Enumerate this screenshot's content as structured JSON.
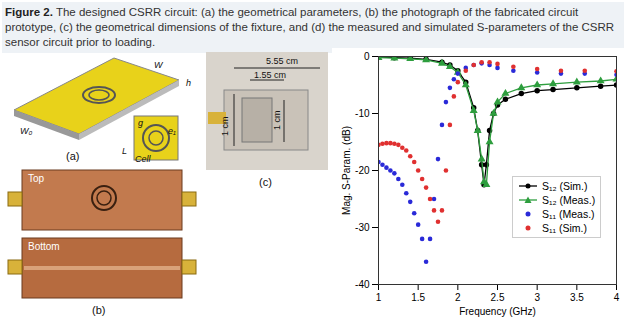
{
  "caption": {
    "label": "Figure 2.",
    "text": "The designed CSRR circuit: (a) the geometrical parameters, (b) the photograph of the fabricated circuit prototype, (c) the geometrical dimensions of the fixture, and (d) the measured and simulated S-parameters of the CSRR sensor circuit prior to loading."
  },
  "panels": {
    "a": {
      "label": "(a)",
      "texts": [
        "W",
        "h",
        "W₀",
        "L",
        "g",
        "e₁",
        "Cell"
      ]
    },
    "b": {
      "label": "(b)",
      "texts": [
        "Top",
        "Bottom"
      ]
    },
    "c": {
      "label": "(c)",
      "texts": [
        "5.55 cm",
        "1.55 cm",
        "1 cm",
        "1 cm"
      ]
    }
  },
  "chart_data": {
    "type": "line",
    "xlabel": "Frequency (GHz)",
    "ylabel": "Mag. S-Param. (dB)",
    "xlim": [
      1,
      4
    ],
    "xticks": [
      1,
      1.5,
      2,
      2.5,
      3,
      3.5,
      4
    ],
    "ylim": [
      -40,
      0
    ],
    "yticks": [
      -40,
      -30,
      -20,
      -10,
      0
    ],
    "grid": false,
    "legend": "right",
    "series": [
      {
        "name": "S₁₂ (Sim.)",
        "color": "#000000",
        "type": "line",
        "marker": "circle",
        "x": [
          1,
          1.2,
          1.4,
          1.6,
          1.8,
          1.9,
          2.0,
          2.1,
          2.2,
          2.25,
          2.3,
          2.33,
          2.36,
          2.4,
          2.45,
          2.5,
          2.6,
          2.8,
          3.0,
          3.2,
          3.5,
          3.8,
          4
        ],
        "values": [
          -0.1,
          -0.2,
          -0.3,
          -0.5,
          -1,
          -1.5,
          -2.5,
          -4.5,
          -9,
          -13,
          -19,
          -22.5,
          -19,
          -13,
          -10,
          -8.5,
          -7.5,
          -6.5,
          -6,
          -5.8,
          -5.5,
          -5.2,
          -5
        ]
      },
      {
        "name": "S₁₂ (Meas.)",
        "color": "#2e9e3e",
        "type": "line",
        "marker": "triangle",
        "x": [
          1,
          1.2,
          1.4,
          1.6,
          1.8,
          1.9,
          2.0,
          2.1,
          2.2,
          2.25,
          2.3,
          2.33,
          2.36,
          2.4,
          2.45,
          2.5,
          2.6,
          2.8,
          3.0,
          3.2,
          3.5,
          3.8,
          4
        ],
        "values": [
          -0.2,
          -0.3,
          -0.4,
          -0.6,
          -1.2,
          -1.8,
          -2.8,
          -5,
          -9.5,
          -13,
          -18,
          -22,
          -22.5,
          -15,
          -10,
          -8,
          -6.5,
          -5.5,
          -5,
          -4.8,
          -4.5,
          -4.3,
          -4
        ]
      },
      {
        "name": "S₁₁ (Meas.)",
        "color": "#2a2ad8",
        "type": "scatter",
        "marker": "circle",
        "x": [
          1,
          1.05,
          1.1,
          1.15,
          1.2,
          1.25,
          1.3,
          1.35,
          1.4,
          1.45,
          1.5,
          1.55,
          1.6,
          1.65,
          1.7,
          1.75,
          1.8,
          1.85,
          1.9,
          1.95,
          2.0,
          2.1,
          2.2,
          2.3,
          2.4,
          2.5,
          2.7,
          3.0,
          3.3,
          3.6,
          4.0
        ],
        "values": [
          -18.5,
          -19,
          -19.5,
          -20,
          -20.5,
          -21.5,
          -22.5,
          -24,
          -25.5,
          -27.5,
          -29.5,
          -32,
          -36,
          -32,
          -25,
          -18,
          -12,
          -8,
          -5.5,
          -4,
          -3,
          -2,
          -1.5,
          -1.2,
          -1.5,
          -2,
          -2.5,
          -2.8,
          -3,
          -3,
          -3.2
        ]
      },
      {
        "name": "S₁₁ (Sim.)",
        "color": "#e03030",
        "type": "scatter",
        "marker": "circle",
        "x": [
          1,
          1.05,
          1.1,
          1.15,
          1.2,
          1.25,
          1.3,
          1.35,
          1.4,
          1.45,
          1.5,
          1.55,
          1.6,
          1.65,
          1.7,
          1.75,
          1.8,
          1.85,
          1.9,
          1.95,
          2.0,
          2.1,
          2.2,
          2.3,
          2.4,
          2.5,
          2.7,
          3.0,
          3.3,
          3.6,
          4.0
        ],
        "values": [
          -15.5,
          -15.3,
          -15.2,
          -15.2,
          -15.3,
          -15.5,
          -16,
          -16.5,
          -17.5,
          -18.5,
          -20,
          -21.5,
          -23,
          -25,
          -27,
          -29,
          -27,
          -20,
          -12,
          -7,
          -4.5,
          -2.5,
          -1.5,
          -1,
          -1,
          -1.3,
          -1.8,
          -2.2,
          -2.5,
          -2.5,
          -2.6
        ]
      }
    ]
  }
}
